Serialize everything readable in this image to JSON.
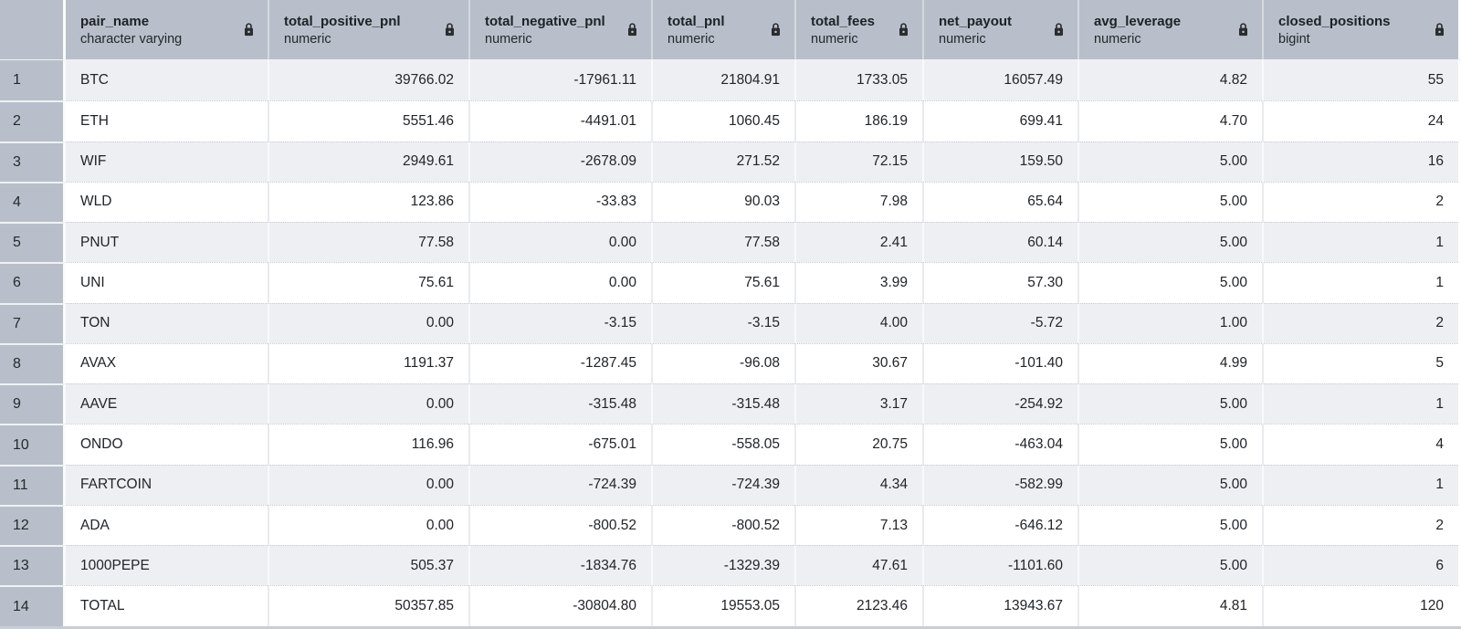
{
  "table": {
    "columns": [
      {
        "name": "pair_name",
        "type": "character varying",
        "locked": true
      },
      {
        "name": "total_positive_pnl",
        "type": "numeric",
        "locked": true
      },
      {
        "name": "total_negative_pnl",
        "type": "numeric",
        "locked": true
      },
      {
        "name": "total_pnl",
        "type": "numeric",
        "locked": true
      },
      {
        "name": "total_fees",
        "type": "numeric",
        "locked": true
      },
      {
        "name": "net_payout",
        "type": "numeric",
        "locked": true
      },
      {
        "name": "avg_leverage",
        "type": "numeric",
        "locked": true
      },
      {
        "name": "closed_positions",
        "type": "bigint",
        "locked": true
      }
    ],
    "rows": [
      {
        "num": "1",
        "cells": [
          "BTC",
          "39766.02",
          "-17961.11",
          "21804.91",
          "1733.05",
          "16057.49",
          "4.82",
          "55"
        ]
      },
      {
        "num": "2",
        "cells": [
          "ETH",
          "5551.46",
          "-4491.01",
          "1060.45",
          "186.19",
          "699.41",
          "4.70",
          "24"
        ]
      },
      {
        "num": "3",
        "cells": [
          "WIF",
          "2949.61",
          "-2678.09",
          "271.52",
          "72.15",
          "159.50",
          "5.00",
          "16"
        ]
      },
      {
        "num": "4",
        "cells": [
          "WLD",
          "123.86",
          "-33.83",
          "90.03",
          "7.98",
          "65.64",
          "5.00",
          "2"
        ]
      },
      {
        "num": "5",
        "cells": [
          "PNUT",
          "77.58",
          "0.00",
          "77.58",
          "2.41",
          "60.14",
          "5.00",
          "1"
        ]
      },
      {
        "num": "6",
        "cells": [
          "UNI",
          "75.61",
          "0.00",
          "75.61",
          "3.99",
          "57.30",
          "5.00",
          "1"
        ]
      },
      {
        "num": "7",
        "cells": [
          "TON",
          "0.00",
          "-3.15",
          "-3.15",
          "4.00",
          "-5.72",
          "1.00",
          "2"
        ]
      },
      {
        "num": "8",
        "cells": [
          "AVAX",
          "1191.37",
          "-1287.45",
          "-96.08",
          "30.67",
          "-101.40",
          "4.99",
          "5"
        ]
      },
      {
        "num": "9",
        "cells": [
          "AAVE",
          "0.00",
          "-315.48",
          "-315.48",
          "3.17",
          "-254.92",
          "5.00",
          "1"
        ]
      },
      {
        "num": "10",
        "cells": [
          "ONDO",
          "116.96",
          "-675.01",
          "-558.05",
          "20.75",
          "-463.04",
          "5.00",
          "4"
        ]
      },
      {
        "num": "11",
        "cells": [
          "FARTCOIN",
          "0.00",
          "-724.39",
          "-724.39",
          "4.34",
          "-582.99",
          "5.00",
          "1"
        ]
      },
      {
        "num": "12",
        "cells": [
          "ADA",
          "0.00",
          "-800.52",
          "-800.52",
          "7.13",
          "-646.12",
          "5.00",
          "2"
        ]
      },
      {
        "num": "13",
        "cells": [
          "1000PEPE",
          "505.37",
          "-1834.76",
          "-1329.39",
          "47.61",
          "-1101.60",
          "5.00",
          "6"
        ]
      },
      {
        "num": "14",
        "cells": [
          "TOTAL",
          "50357.85",
          "-30804.80",
          "19553.05",
          "2123.46",
          "13943.67",
          "4.81",
          "120"
        ]
      }
    ]
  },
  "icons": {
    "lock": "lock-icon"
  },
  "colors": {
    "header_bg": "#b8bfca",
    "row_alt_bg": "#edeff3",
    "row_bg": "#ffffff",
    "text": "#212428",
    "lock": "#2a2c30"
  }
}
